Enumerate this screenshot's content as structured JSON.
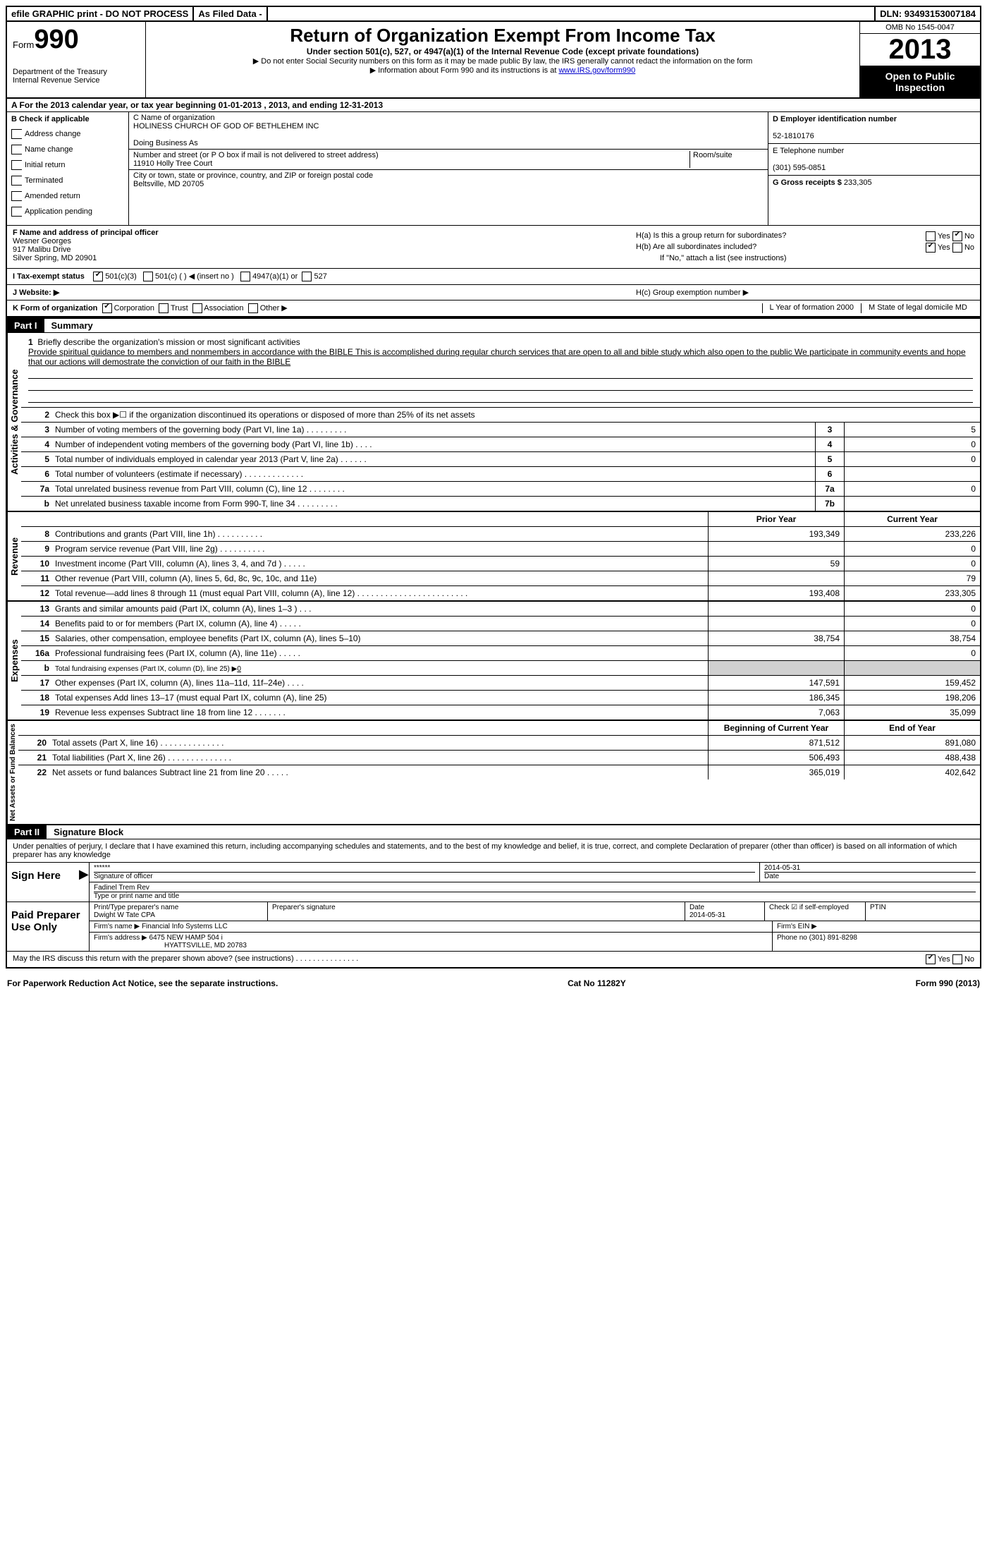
{
  "top_bar": {
    "efile": "efile GRAPHIC print - DO NOT PROCESS",
    "as_filed": "As Filed Data -",
    "dln_label": "DLN:",
    "dln": "93493153007184"
  },
  "header": {
    "form_label": "Form",
    "form_no": "990",
    "dept1": "Department of the Treasury",
    "dept2": "Internal Revenue Service",
    "title": "Return of Organization Exempt From Income Tax",
    "subtitle": "Under section 501(c), 527, or 4947(a)(1) of the Internal Revenue Code (except private foundations)",
    "note1": "▶ Do not enter Social Security numbers on this form as it may be made public  By law, the IRS generally cannot redact the information on the form",
    "note2": "▶ Information about Form 990 and its instructions is at ",
    "link": "www.IRS.gov/form990",
    "omb": "OMB No  1545-0047",
    "year": "2013",
    "open1": "Open to Public",
    "open2": "Inspection"
  },
  "section_a": "A  For the 2013 calendar year, or tax year beginning 01-01-2013     , 2013, and ending 12-31-2013",
  "col_b": {
    "label": "B  Check if applicable",
    "items": [
      "Address change",
      "Name change",
      "Initial return",
      "Terminated",
      "Amended return",
      "Application pending"
    ]
  },
  "col_c": {
    "name_label": "C Name of organization",
    "name": "HOLINESS CHURCH OF GOD OF BETHLEHEM INC",
    "dba": "Doing Business As",
    "street_label": "Number and street (or P O  box if mail is not delivered to street address)",
    "room_label": "Room/suite",
    "street": "11910 Holly Tree Court",
    "city_label": "City or town, state or province, country, and ZIP or foreign postal code",
    "city": "Beltsville, MD  20705"
  },
  "col_d": {
    "ein_label": "D Employer identification number",
    "ein": "52-1810176",
    "tel_label": "E Telephone number",
    "tel": "(301) 595-0851",
    "gross_label": "G Gross receipts $",
    "gross": "233,305"
  },
  "row_f": {
    "label": "F   Name and address of principal officer",
    "name": "Wesner Georges",
    "addr1": "917 Malibu Drive",
    "addr2": "Silver Spring, MD   20901"
  },
  "row_h": {
    "ha": "H(a)  Is this a group return for subordinates?",
    "hb": "H(b)  Are all subordinates included?",
    "hb_note": "If \"No,\" attach a list  (see instructions)",
    "hc": "H(c)   Group exemption number ▶",
    "yes": "Yes",
    "no": "No"
  },
  "row_i": {
    "label": "I   Tax-exempt status",
    "o1": "501(c)(3)",
    "o2": "501(c) (   )",
    "o2b": "◀ (insert no )",
    "o3": "4947(a)(1) or",
    "o4": "527"
  },
  "row_j": {
    "label": "J   Website: ▶"
  },
  "row_k": {
    "label": "K Form of organization",
    "o1": "Corporation",
    "o2": "Trust",
    "o3": "Association",
    "o4": "Other ▶",
    "l": "L Year of formation  2000",
    "m": "M State of legal domicile  MD"
  },
  "part1": {
    "num": "Part I",
    "title": "Summary"
  },
  "mission": {
    "num": "1",
    "label": "Briefly describe the organization's mission or most significant activities",
    "text": "Provide spiritual guidance to members and nonmembers in accordance with the BIBLE  This is accomplished during regular church services that are open to all and bible study which also open to the public  We participate in community events and hope that our actions will demostrate the conviction of our faith in the BIBLE"
  },
  "line2": {
    "num": "2",
    "desc": "Check this box ▶☐ if the organization discontinued its operations or disposed of more than 25% of its net assets"
  },
  "gov_lines": [
    {
      "num": "3",
      "desc": "Number of voting members of the governing body (Part VI, line 1a)   .    .    .    .    .    .    .    .    .",
      "box": "3",
      "val": "5"
    },
    {
      "num": "4",
      "desc": "Number of independent voting members of the governing body (Part VI, line 1b)    .    .    .    .",
      "box": "4",
      "val": "0"
    },
    {
      "num": "5",
      "desc": "Total number of individuals employed in calendar year 2013 (Part V, line 2a)   .    .    .    .    .    .",
      "box": "5",
      "val": "0"
    },
    {
      "num": "6",
      "desc": "Total number of volunteers (estimate if necessary)   .    .    .    .    .    .    .    .    .    .    .    .    .",
      "box": "6",
      "val": ""
    },
    {
      "num": "7a",
      "desc": "Total unrelated business revenue from Part VIII, column (C), line 12    .    .    .    .    .    .    .    .",
      "box": "7a",
      "val": "0"
    },
    {
      "num": "b",
      "desc": "Net unrelated business taxable income from Form 990-T, line 34   .    .    .    .    .    .    .    .    .",
      "box": "7b",
      "val": ""
    }
  ],
  "py_cy_header": {
    "py": "Prior Year",
    "cy": "Current Year"
  },
  "revenue_lines": [
    {
      "num": "8",
      "desc": "Contributions and grants (Part VIII, line 1h)    .    .    .    .    .    .    .    .    .    .",
      "py": "193,349",
      "cy": "233,226"
    },
    {
      "num": "9",
      "desc": "Program service revenue (Part VIII, line 2g)    .    .    .    .    .    .    .    .    .    .",
      "py": "",
      "cy": "0"
    },
    {
      "num": "10",
      "desc": "Investment income (Part VIII, column (A), lines 3, 4, and 7d )    .    .    .    .    .",
      "py": "59",
      "cy": "0"
    },
    {
      "num": "11",
      "desc": "Other revenue (Part VIII, column (A), lines 5, 6d, 8c, 9c, 10c, and 11e)",
      "py": "",
      "cy": "79"
    },
    {
      "num": "12",
      "desc": "Total revenue—add lines 8 through 11 (must equal Part VIII, column (A), line 12) .    .    .    .    .    .    .    .    .    .    .    .    .    .    .    .    .    .    .    .    .    .    .    .",
      "py": "193,408",
      "cy": "233,305"
    }
  ],
  "expense_lines": [
    {
      "num": "13",
      "desc": "Grants and similar amounts paid (Part IX, column (A), lines 1–3 )    .    .    .",
      "py": "",
      "cy": "0"
    },
    {
      "num": "14",
      "desc": "Benefits paid to or for members (Part IX, column (A), line 4)    .    .    .    .    .",
      "py": "",
      "cy": "0"
    },
    {
      "num": "15",
      "desc": "Salaries, other compensation, employee benefits (Part IX, column (A), lines 5–10)",
      "py": "38,754",
      "cy": "38,754"
    },
    {
      "num": "16a",
      "desc": "Professional fundraising fees (Part IX, column (A), line 11e)    .    .    .    .    .",
      "py": "",
      "cy": "0"
    },
    {
      "num": "b",
      "desc": "Total fundraising expenses (Part IX, column (D), line 25) ▶0",
      "py": "GRAY",
      "cy": "GRAY"
    },
    {
      "num": "17",
      "desc": "Other expenses (Part IX, column (A), lines 11a–11d, 11f–24e)    .    .    .    .",
      "py": "147,591",
      "cy": "159,452"
    },
    {
      "num": "18",
      "desc": "Total expenses  Add lines 13–17 (must equal Part IX, column (A), line 25)",
      "py": "186,345",
      "cy": "198,206"
    },
    {
      "num": "19",
      "desc": "Revenue less expenses  Subtract line 18 from line 12    .    .    .    .    .    .    .",
      "py": "7,063",
      "cy": "35,099"
    }
  ],
  "na_header": {
    "py": "Beginning of Current Year",
    "cy": "End of Year"
  },
  "na_lines": [
    {
      "num": "20",
      "desc": "Total assets (Part X, line 16)    .    .    .    .    .    .    .    .    .    .    .    .    .    .",
      "py": "871,512",
      "cy": "891,080"
    },
    {
      "num": "21",
      "desc": "Total liabilities (Part X, line 26)    .    .    .    .    .    .    .    .    .    .    .    .    .    .",
      "py": "506,493",
      "cy": "488,438"
    },
    {
      "num": "22",
      "desc": "Net assets or fund balances  Subtract line 21 from line 20    .    .    .    .    .",
      "py": "365,019",
      "cy": "402,642"
    }
  ],
  "part2": {
    "num": "Part II",
    "title": "Signature Block"
  },
  "perjury": "Under penalties of perjury, I declare that I have examined this return, including accompanying schedules and statements, and to the best of my knowledge and belief, it is true, correct, and complete  Declaration of preparer (other than officer) is based on all information of which preparer has any knowledge",
  "sign": {
    "label": "Sign Here",
    "stars": "******",
    "sig_of": "Signature of officer",
    "date": "2014-05-31",
    "date_lbl": "Date",
    "name": "Fadinel Trem Rev",
    "name_lbl": "Type or print name and title"
  },
  "preparer": {
    "label": "Paid Preparer Use Only",
    "c1": "Print/Type preparer's name",
    "v1": "Dwight W Tate CPA",
    "c2": "Preparer's signature",
    "c3": "Date",
    "v3": "2014-05-31",
    "c4": "Check ☑ if self-employed",
    "c5": "PTIN",
    "firm_name_lbl": "Firm's name      ▶",
    "firm_name": "Financial Info Systems LLC",
    "firm_ein_lbl": "Firm's EIN ▶",
    "firm_addr_lbl": "Firm's address ▶",
    "firm_addr1": "6475 NEW HAMP 504 i",
    "firm_addr2": "HYATTSVILLE, MD  20783",
    "phone_lbl": "Phone no  (301) 891-8298"
  },
  "irs_discuss": "May the IRS discuss this return with the preparer shown above? (see instructions)    .    .    .    .    .    .    .    .    .    .    .    .    .    .    .",
  "footer": {
    "left": "For Paperwork Reduction Act Notice, see the separate instructions.",
    "mid": "Cat No  11282Y",
    "right": "Form 990 (2013)"
  },
  "vlabels": {
    "ag": "Activities & Governance",
    "rev": "Revenue",
    "exp": "Expenses",
    "na": "Net Assets or Fund Balances"
  }
}
